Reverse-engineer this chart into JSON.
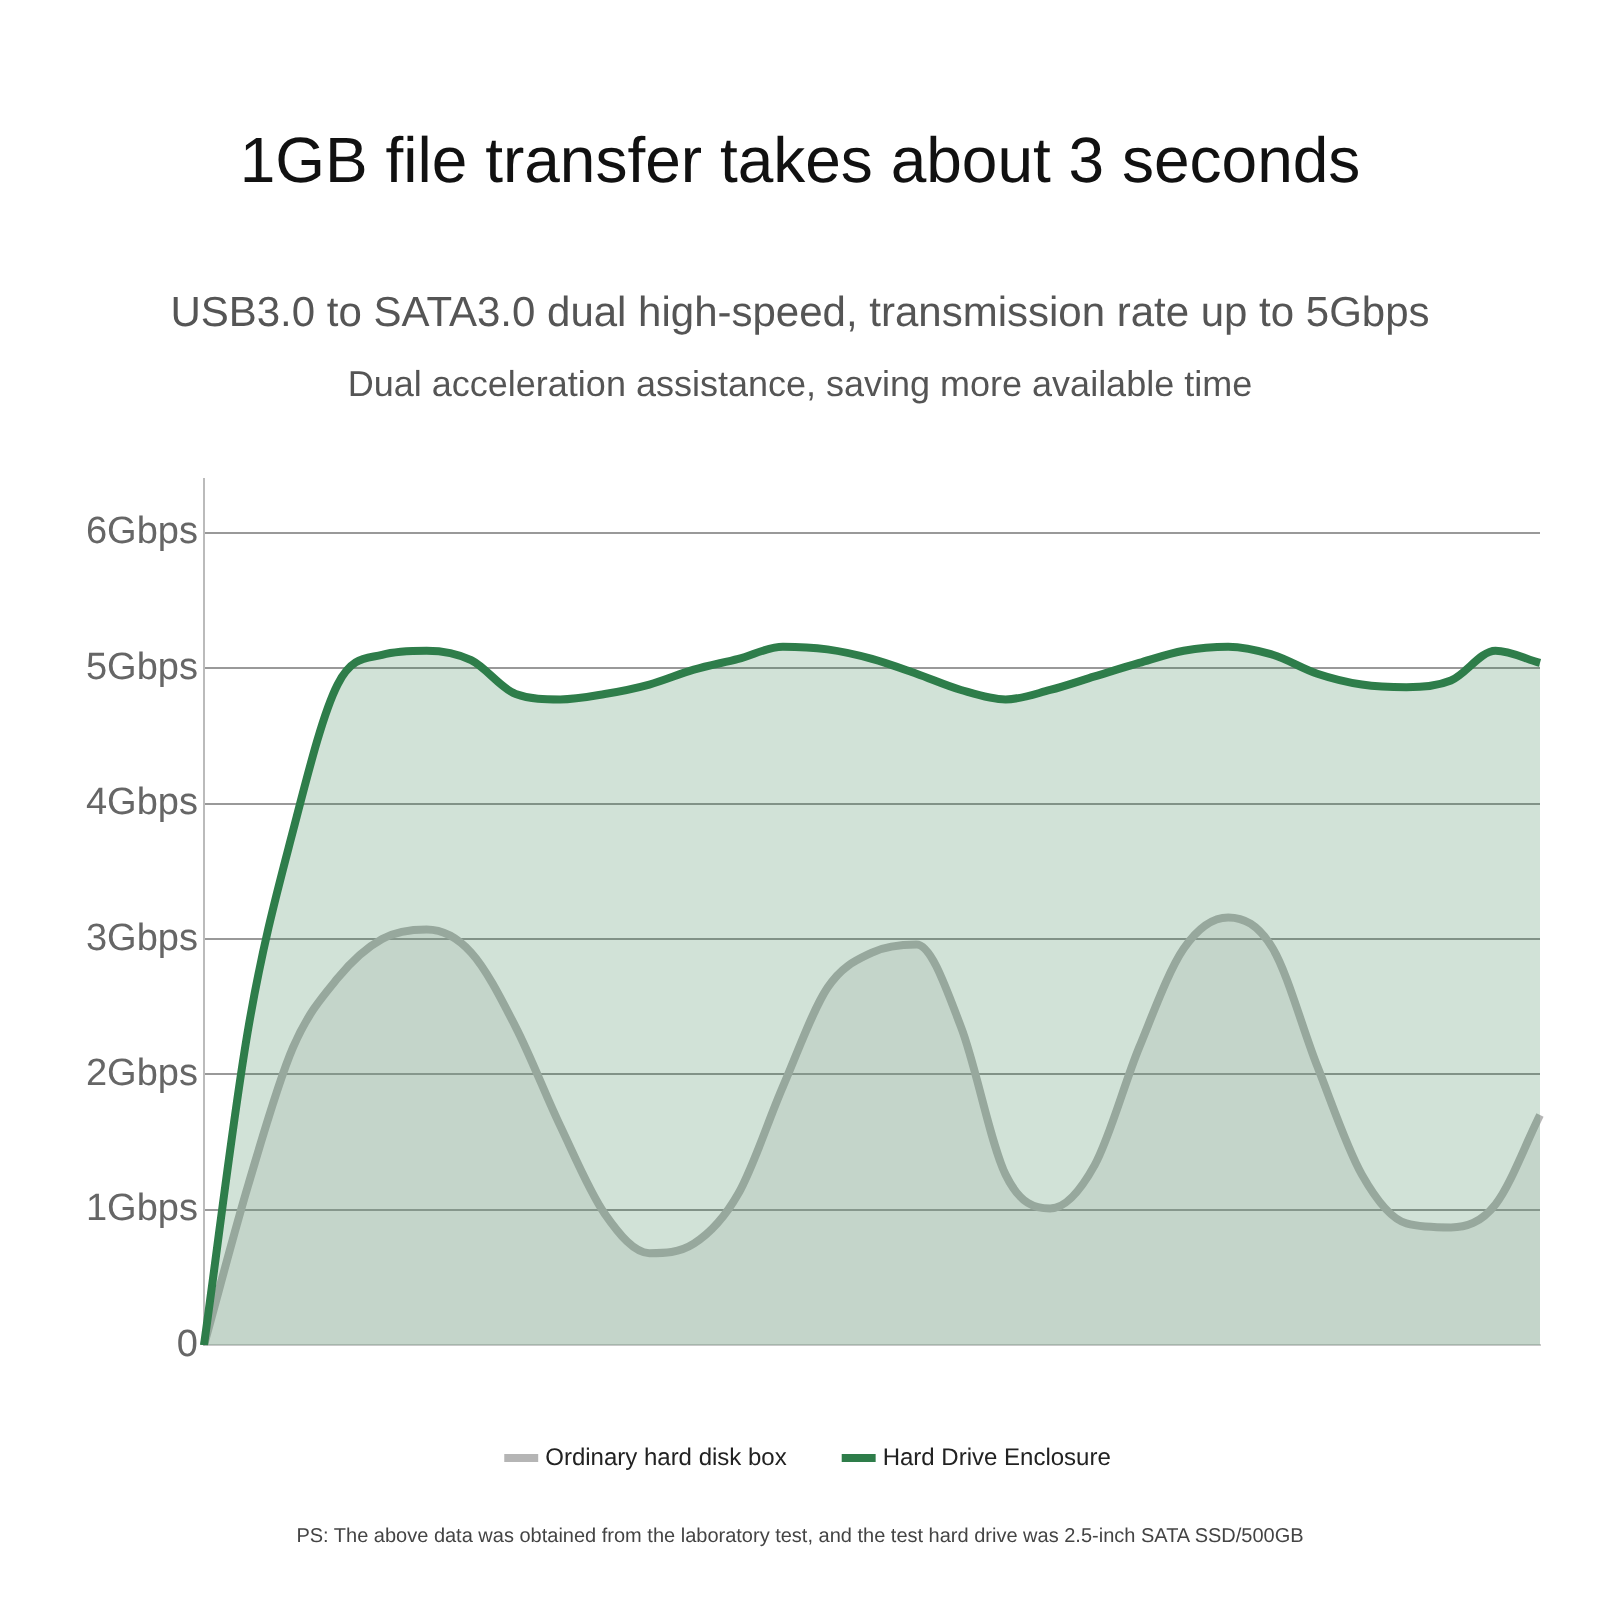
{
  "chart_data": {
    "type": "area",
    "title": "1GB file transfer takes about 3 seconds",
    "subtitle": "USB3.0 to SATA3.0 dual high-speed, transmission rate up to 5Gbps",
    "annotations": [
      "Dual acceleration assistance, saving more available time",
      "PS: The above data was obtained from the laboratory test, and the test hard drive was 2.5-inch SATA SSD/500GB"
    ],
    "categories": [
      null,
      null,
      null,
      null,
      null,
      null,
      null,
      null,
      null,
      null,
      null,
      null,
      null,
      null,
      null,
      null,
      null,
      null,
      null,
      null,
      null,
      null,
      null,
      null,
      null,
      null,
      null,
      null,
      null,
      null,
      null
    ],
    "series": [
      {
        "name": "Ordinary hard disk box",
        "color": "#b5b5b5",
        "values": [
          0,
          1.19,
          2.2,
          2.71,
          3.0,
          3.07,
          2.9,
          2.35,
          1.62,
          0.97,
          0.68,
          0.75,
          1.12,
          1.91,
          2.64,
          2.9,
          2.96,
          2.35,
          1.26,
          1.01,
          1.33,
          2.2,
          2.93,
          3.16,
          2.93,
          2.06,
          1.26,
          0.9,
          0.87,
          1.04,
          1.7
        ]
      },
      {
        "name": "Hard Drive Enclosure",
        "color": "#2e7d4a",
        "values": [
          0,
          2.35,
          3.8,
          4.88,
          5.1,
          5.13,
          5.06,
          4.81,
          4.77,
          4.81,
          4.88,
          4.99,
          5.07,
          5.16,
          5.14,
          5.07,
          4.96,
          4.84,
          4.77,
          4.84,
          4.94,
          5.04,
          5.13,
          5.16,
          5.1,
          4.96,
          4.88,
          4.86,
          4.91,
          5.13,
          5.04
        ]
      }
    ],
    "ylim": [
      0,
      6.4
    ],
    "yticks": [
      0,
      {
        "value": 1,
        "label": "1Gbps"
      },
      {
        "value": 2,
        "label": "2Gbps"
      },
      {
        "value": 3,
        "label": "3Gbps"
      },
      {
        "value": 4,
        "label": "4Gbps"
      },
      {
        "value": 5,
        "label": "5Gbps"
      },
      {
        "value": 6,
        "label": "6Gbps"
      }
    ],
    "grid": "y",
    "legend": "bottom",
    "marker": "none",
    "line_style": "solid"
  }
}
